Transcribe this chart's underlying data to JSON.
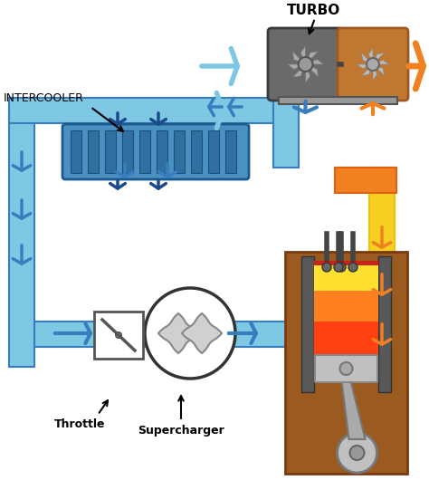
{
  "bg_color": "#ffffff",
  "lb": "#7EC8E3",
  "lb2": "#A8D8EA",
  "bl": "#3A7DBF",
  "dbl": "#1A4A8A",
  "ye": "#F5D020",
  "ye2": "#F0C010",
  "or1": "#F08020",
  "or2": "#E06010",
  "or3": "#D05000",
  "gray1": "#888888",
  "gray2": "#555555",
  "gray3": "#AAAAAA",
  "gray4": "#CCCCCC",
  "turbo_or": "#C07830",
  "turbo_or2": "#A05820",
  "eng_br": "#9B5A20",
  "eng_br2": "#7A3A10",
  "eng_gray": "#686868",
  "cyl_gray": "#585858",
  "piston_lg": "#C0C0C0",
  "fire_y": "#FFE030",
  "fire_o": "#FF8020",
  "fire_r": "#FF4010",
  "labels": {
    "turbo": "TURBO",
    "intercooler": "INTERCOOLER",
    "throttle": "Throttle",
    "supercharger": "Supercharger"
  }
}
